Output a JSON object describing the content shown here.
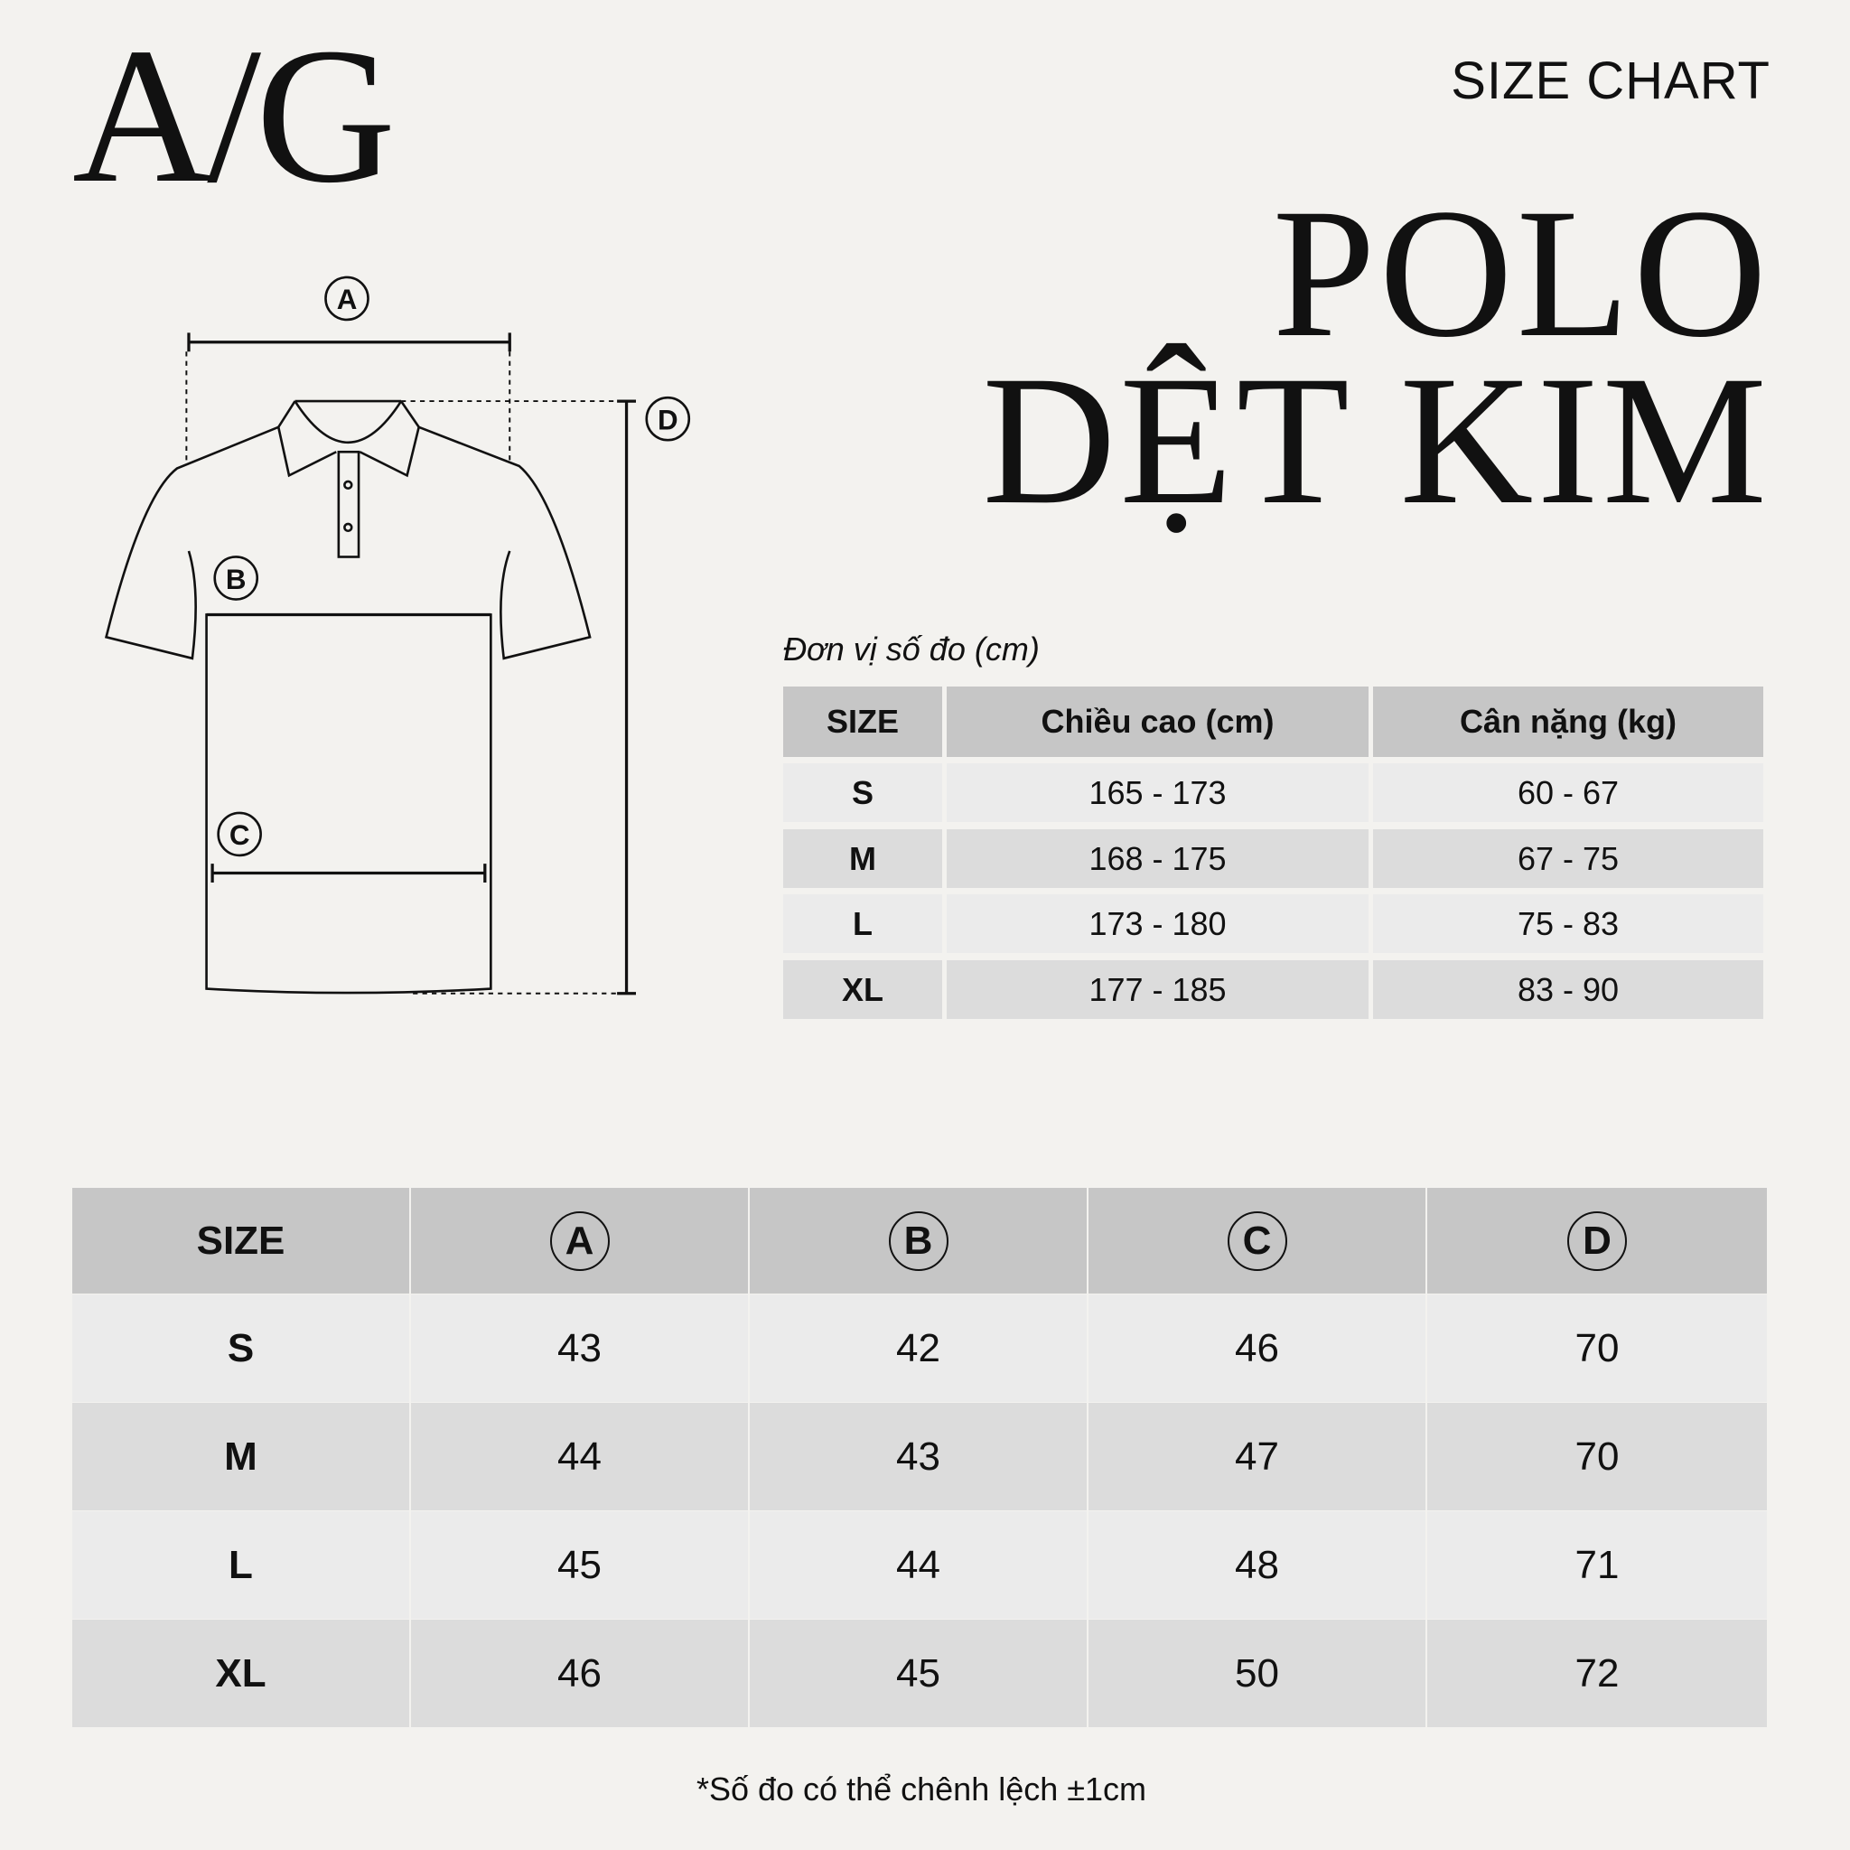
{
  "brand": {
    "logo": "A/G"
  },
  "header": {
    "label": "SIZE CHART",
    "title_line1": "POLO",
    "title_line2": "DỆT KIM"
  },
  "diagram": {
    "markers": [
      "A",
      "B",
      "C",
      "D"
    ]
  },
  "body_table": {
    "unit_label": "Đơn vị số đo (cm)",
    "columns": [
      "SIZE",
      "Chiều cao (cm)",
      "Cân nặng (kg)"
    ],
    "rows": [
      [
        "S",
        "165 - 173",
        "60 - 67"
      ],
      [
        "M",
        "168 - 175",
        "67 - 75"
      ],
      [
        "L",
        "173 - 180",
        "75 - 83"
      ],
      [
        "XL",
        "177 - 185",
        "83 - 90"
      ]
    ]
  },
  "measure_table": {
    "columns": [
      "SIZE",
      "A",
      "B",
      "C",
      "D"
    ],
    "rows": [
      [
        "S",
        "43",
        "42",
        "46",
        "70"
      ],
      [
        "M",
        "44",
        "43",
        "47",
        "70"
      ],
      [
        "L",
        "45",
        "44",
        "48",
        "71"
      ],
      [
        "XL",
        "46",
        "45",
        "50",
        "72"
      ]
    ]
  },
  "footnote": "*Số đo có thể chênh lệch ±1cm"
}
